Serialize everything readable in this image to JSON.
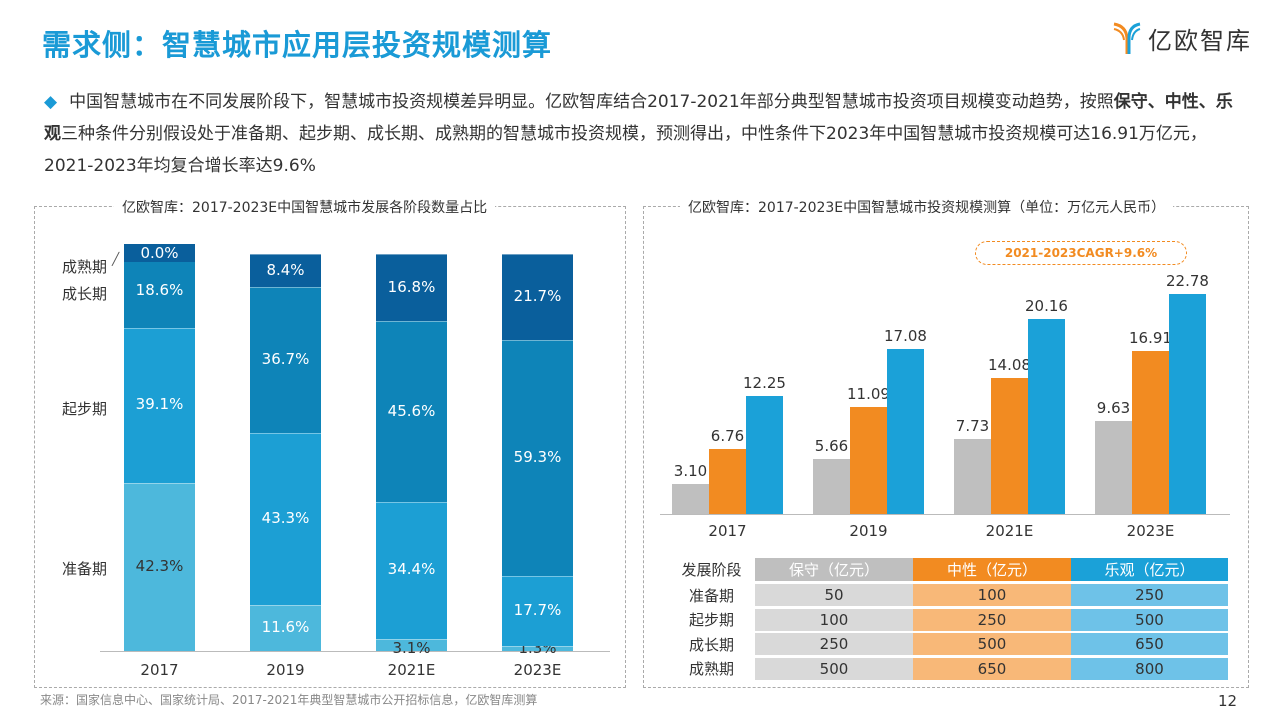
{
  "title": "需求侧：智慧城市应用层投资规模测算",
  "logo": {
    "text": "亿欧智库"
  },
  "intro": {
    "pre": "中国智慧城市在不同发展阶段下，智慧城市投资规模差异明显。亿欧智库结合2017-2021年部分典型智慧城市投资项目规模变动趋势，按照",
    "bold": "保守、中性、乐观",
    "post": "三种条件分别假设处于准备期、起步期、成长期、成熟期的智慧城市投资规模，预测得出，中性条件下2023年中国智慧城市投资规模可达16.91万亿元，2021-2023年均复合增长率达9.6%"
  },
  "colors": {
    "accent": "#1a9ad6",
    "conservative": "#bfbfbf",
    "neutral": "#f28b21",
    "optimistic": "#1ba1d8",
    "stage_prep": "#4db8dc",
    "stage_start": "#1c9fd4",
    "stage_growth": "#0e84b8",
    "stage_mature": "#0a5f9c"
  },
  "chart_data": [
    {
      "type": "bar",
      "stacked": true,
      "title": "亿欧智库：2017-2023E中国智慧城市发展各阶段数量占比",
      "categories": [
        "2017",
        "2019",
        "2021E",
        "2023E"
      ],
      "ylim": [
        0,
        100
      ],
      "unit": "%",
      "series": [
        {
          "name": "准备期",
          "values": [
            42.3,
            11.6,
            3.1,
            1.3
          ],
          "labels": [
            "42.3%",
            "11.6%",
            "3.1%",
            "1.3%"
          ]
        },
        {
          "name": "起步期",
          "values": [
            39.1,
            43.3,
            34.4,
            17.7
          ],
          "labels": [
            "39.1%",
            "43.3%",
            "34.4%",
            "17.7%"
          ]
        },
        {
          "name": "成长期",
          "values": [
            18.6,
            36.7,
            45.6,
            59.3
          ],
          "labels": [
            "18.6%",
            "36.7%",
            "45.6%",
            "59.3%"
          ]
        },
        {
          "name": "成熟期",
          "values": [
            0.0,
            8.4,
            16.8,
            21.7
          ],
          "labels": [
            "0.0%",
            "8.4%",
            "16.8%",
            "21.7%"
          ]
        }
      ]
    },
    {
      "type": "bar",
      "title": "亿欧智库：2017-2023E中国智慧城市投资规模测算（单位：万亿元人民币）",
      "categories": [
        "2017",
        "2019",
        "2021E",
        "2023E"
      ],
      "annotation": "2021-2023CAGR+9.6%",
      "series": [
        {
          "key": "conservative",
          "values": [
            3.1,
            5.66,
            7.73,
            9.63
          ],
          "labels": [
            "3.10",
            "5.66",
            "7.73",
            "9.63"
          ]
        },
        {
          "key": "neutral",
          "values": [
            6.76,
            11.09,
            14.08,
            16.91
          ],
          "labels": [
            "6.76",
            "11.09",
            "14.08",
            "16.91"
          ]
        },
        {
          "key": "optimistic",
          "values": [
            12.25,
            17.08,
            20.16,
            22.78
          ],
          "labels": [
            "12.25",
            "17.08",
            "20.16",
            "22.78"
          ]
        }
      ]
    }
  ],
  "table": {
    "headers": [
      "发展阶段",
      "保守（亿元）",
      "中性（亿元）",
      "乐观（亿元）"
    ],
    "rows": [
      [
        "准备期",
        "50",
        "100",
        "250"
      ],
      [
        "起步期",
        "100",
        "250",
        "500"
      ],
      [
        "成长期",
        "250",
        "500",
        "650"
      ],
      [
        "成熟期",
        "500",
        "650",
        "800"
      ]
    ]
  },
  "source": "来源：国家信息中心、国家统计局、2017-2021年典型智慧城市公开招标信息，亿欧智库测算",
  "page": "12"
}
